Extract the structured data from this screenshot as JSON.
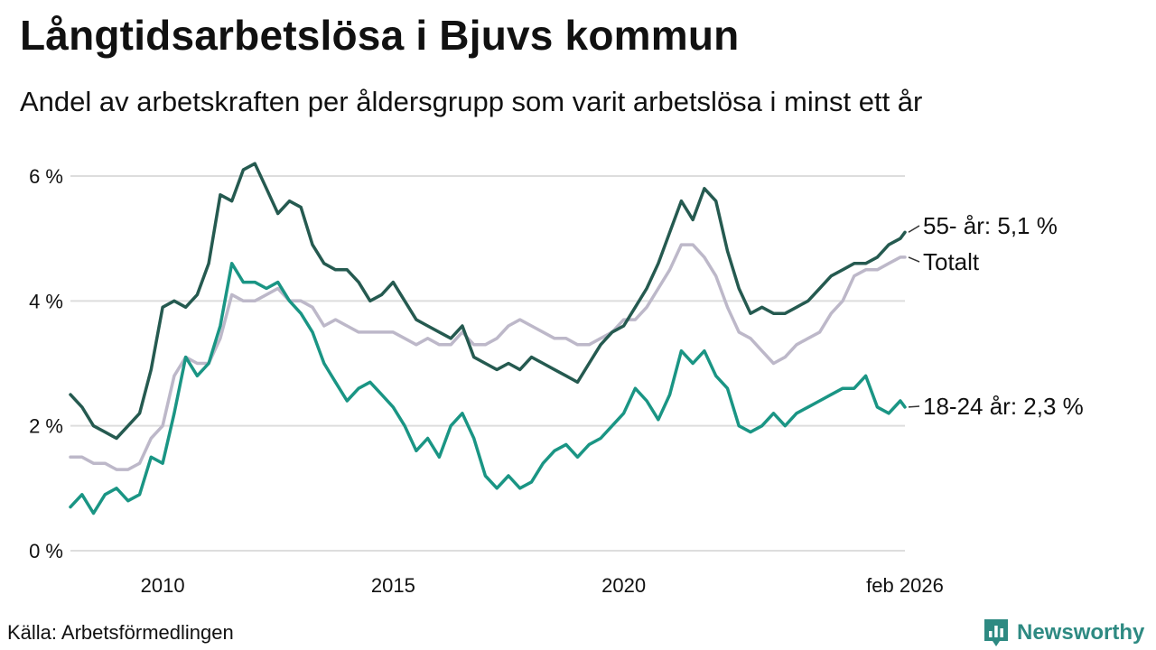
{
  "header": {
    "title": "Långtidsarbetslösa i Bjuvs kommun",
    "subtitle": "Andel av arbetskraften per åldersgrupp som varit arbetslösa i minst ett år"
  },
  "footer": {
    "source": "Källa: Arbetsförmedlingen",
    "brand": "Newsworthy"
  },
  "colors": {
    "series_55": "#255a50",
    "series_total": "#bdb8c9",
    "series_18_24": "#1a9584",
    "grid": "#dddddd",
    "brand": "#2e8a82"
  },
  "chart_data": {
    "type": "line",
    "title": "Långtidsarbetslösa i Bjuvs kommun",
    "subtitle": "Andel av arbetskraften per åldersgrupp som varit arbetslösa i minst ett år",
    "xlabel": "",
    "ylabel": "",
    "xlim": [
      2008.0,
      2026.1
    ],
    "ylim": [
      0,
      6
    ],
    "yticks": [
      0,
      2,
      4,
      6
    ],
    "ytick_labels": [
      "0 %",
      "2 %",
      "4 %",
      "6 %"
    ],
    "xticks": [
      2010,
      2015,
      2020,
      2026.1
    ],
    "xtick_labels": [
      "2010",
      "2015",
      "2020",
      "feb 2026"
    ],
    "grid": true,
    "series": [
      {
        "name": "Totalt",
        "label": "Totalt",
        "color": "#bdb8c9",
        "x": [
          2008.0,
          2008.25,
          2008.5,
          2008.75,
          2009.0,
          2009.25,
          2009.5,
          2009.75,
          2010.0,
          2010.25,
          2010.5,
          2010.75,
          2011.0,
          2011.25,
          2011.5,
          2011.75,
          2012.0,
          2012.25,
          2012.5,
          2012.75,
          2013.0,
          2013.25,
          2013.5,
          2013.75,
          2014.0,
          2014.25,
          2014.5,
          2014.75,
          2015.0,
          2015.25,
          2015.5,
          2015.75,
          2016.0,
          2016.25,
          2016.5,
          2016.75,
          2017.0,
          2017.25,
          2017.5,
          2017.75,
          2018.0,
          2018.25,
          2018.5,
          2018.75,
          2019.0,
          2019.25,
          2019.5,
          2019.75,
          2020.0,
          2020.25,
          2020.5,
          2020.75,
          2021.0,
          2021.25,
          2021.5,
          2021.75,
          2022.0,
          2022.25,
          2022.5,
          2022.75,
          2023.0,
          2023.25,
          2023.5,
          2023.75,
          2024.0,
          2024.25,
          2024.5,
          2024.75,
          2025.0,
          2025.25,
          2025.5,
          2025.75,
          2026.0,
          2026.1
        ],
        "values": [
          1.5,
          1.5,
          1.4,
          1.4,
          1.3,
          1.3,
          1.4,
          1.8,
          2.0,
          2.8,
          3.1,
          3.0,
          3.0,
          3.4,
          4.1,
          4.0,
          4.0,
          4.1,
          4.2,
          4.0,
          4.0,
          3.9,
          3.6,
          3.7,
          3.6,
          3.5,
          3.5,
          3.5,
          3.5,
          3.4,
          3.3,
          3.4,
          3.3,
          3.3,
          3.5,
          3.3,
          3.3,
          3.4,
          3.6,
          3.7,
          3.6,
          3.5,
          3.4,
          3.4,
          3.3,
          3.3,
          3.4,
          3.5,
          3.7,
          3.7,
          3.9,
          4.2,
          4.5,
          4.9,
          4.9,
          4.7,
          4.4,
          3.9,
          3.5,
          3.4,
          3.2,
          3.0,
          3.1,
          3.3,
          3.4,
          3.5,
          3.8,
          4.0,
          4.4,
          4.5,
          4.5,
          4.6,
          4.7,
          4.7
        ],
        "last_value": "Totalt"
      },
      {
        "name": "55- år",
        "label": "55- år: 5,1 %",
        "color": "#255a50",
        "x": [
          2008.0,
          2008.25,
          2008.5,
          2008.75,
          2009.0,
          2009.25,
          2009.5,
          2009.75,
          2010.0,
          2010.25,
          2010.5,
          2010.75,
          2011.0,
          2011.25,
          2011.5,
          2011.75,
          2012.0,
          2012.25,
          2012.5,
          2012.75,
          2013.0,
          2013.25,
          2013.5,
          2013.75,
          2014.0,
          2014.25,
          2014.5,
          2014.75,
          2015.0,
          2015.25,
          2015.5,
          2015.75,
          2016.0,
          2016.25,
          2016.5,
          2016.75,
          2017.0,
          2017.25,
          2017.5,
          2017.75,
          2018.0,
          2018.25,
          2018.5,
          2018.75,
          2019.0,
          2019.25,
          2019.5,
          2019.75,
          2020.0,
          2020.25,
          2020.5,
          2020.75,
          2021.0,
          2021.25,
          2021.5,
          2021.75,
          2022.0,
          2022.25,
          2022.5,
          2022.75,
          2023.0,
          2023.25,
          2023.5,
          2023.75,
          2024.0,
          2024.25,
          2024.5,
          2024.75,
          2025.0,
          2025.25,
          2025.5,
          2025.75,
          2026.0,
          2026.1
        ],
        "values": [
          2.5,
          2.3,
          2.0,
          1.9,
          1.8,
          2.0,
          2.2,
          2.9,
          3.9,
          4.0,
          3.9,
          4.1,
          4.6,
          5.7,
          5.6,
          6.1,
          6.2,
          5.8,
          5.4,
          5.6,
          5.5,
          4.9,
          4.6,
          4.5,
          4.5,
          4.3,
          4.0,
          4.1,
          4.3,
          4.0,
          3.7,
          3.6,
          3.5,
          3.4,
          3.6,
          3.1,
          3.0,
          2.9,
          3.0,
          2.9,
          3.1,
          3.0,
          2.9,
          2.8,
          2.7,
          3.0,
          3.3,
          3.5,
          3.6,
          3.9,
          4.2,
          4.6,
          5.1,
          5.6,
          5.3,
          5.8,
          5.6,
          4.8,
          4.2,
          3.8,
          3.9,
          3.8,
          3.8,
          3.9,
          4.0,
          4.2,
          4.4,
          4.5,
          4.6,
          4.6,
          4.7,
          4.9,
          5.0,
          5.1
        ],
        "last_value": "5,1 %"
      },
      {
        "name": "18-24 år",
        "label": "18-24 år: 2,3 %",
        "color": "#1a9584",
        "x": [
          2008.0,
          2008.25,
          2008.5,
          2008.75,
          2009.0,
          2009.25,
          2009.5,
          2009.75,
          2010.0,
          2010.25,
          2010.5,
          2010.75,
          2011.0,
          2011.25,
          2011.5,
          2011.75,
          2012.0,
          2012.25,
          2012.5,
          2012.75,
          2013.0,
          2013.25,
          2013.5,
          2013.75,
          2014.0,
          2014.25,
          2014.5,
          2014.75,
          2015.0,
          2015.25,
          2015.5,
          2015.75,
          2016.0,
          2016.25,
          2016.5,
          2016.75,
          2017.0,
          2017.25,
          2017.5,
          2017.75,
          2018.0,
          2018.25,
          2018.5,
          2018.75,
          2019.0,
          2019.25,
          2019.5,
          2019.75,
          2020.0,
          2020.25,
          2020.5,
          2020.75,
          2021.0,
          2021.25,
          2021.5,
          2021.75,
          2022.0,
          2022.25,
          2022.5,
          2022.75,
          2023.0,
          2023.25,
          2023.5,
          2023.75,
          2024.0,
          2024.25,
          2024.5,
          2024.75,
          2025.0,
          2025.25,
          2025.5,
          2025.75,
          2026.0,
          2026.1
        ],
        "values": [
          0.7,
          0.9,
          0.6,
          0.9,
          1.0,
          0.8,
          0.9,
          1.5,
          1.4,
          2.2,
          3.1,
          2.8,
          3.0,
          3.6,
          4.6,
          4.3,
          4.3,
          4.2,
          4.3,
          4.0,
          3.8,
          3.5,
          3.0,
          2.7,
          2.4,
          2.6,
          2.7,
          2.5,
          2.3,
          2.0,
          1.6,
          1.8,
          1.5,
          2.0,
          2.2,
          1.8,
          1.2,
          1.0,
          1.2,
          1.0,
          1.1,
          1.4,
          1.6,
          1.7,
          1.5,
          1.7,
          1.8,
          2.0,
          2.2,
          2.6,
          2.4,
          2.1,
          2.5,
          3.2,
          3.0,
          3.2,
          2.8,
          2.6,
          2.0,
          1.9,
          2.0,
          2.2,
          2.0,
          2.2,
          2.3,
          2.4,
          2.5,
          2.6,
          2.6,
          2.8,
          2.3,
          2.2,
          2.4,
          2.3
        ],
        "last_value": "2,3 %"
      }
    ]
  }
}
